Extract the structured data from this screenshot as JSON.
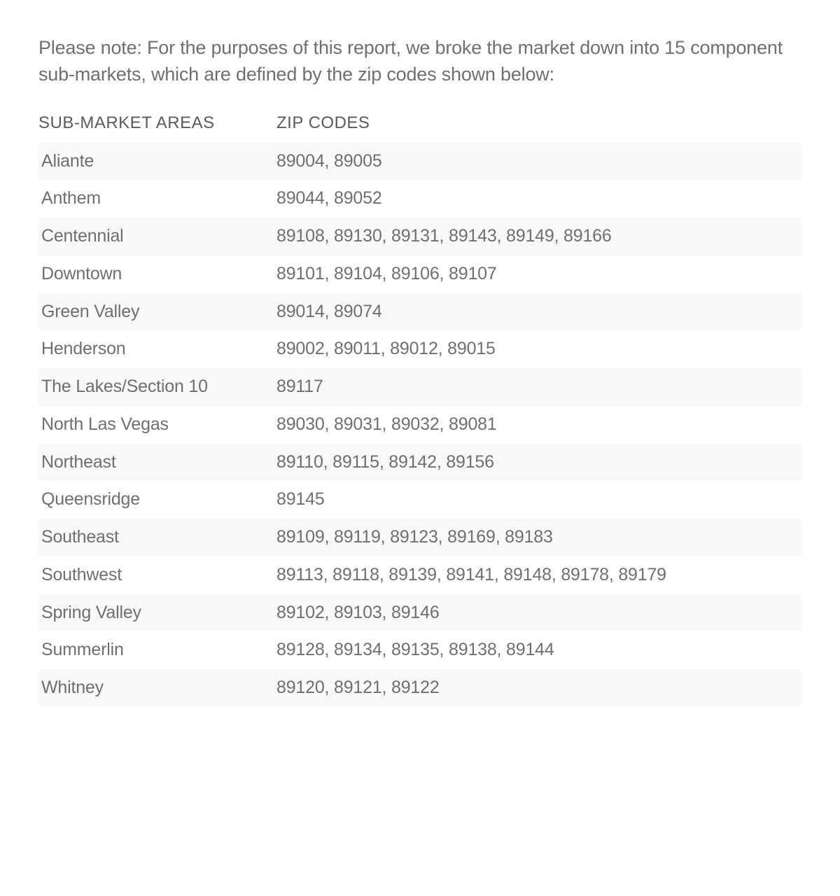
{
  "intro": "Please note: For the purposes of this report, we broke the market down into 15 component sub-markets, which are defined by the zip codes shown below:",
  "table": {
    "headers": {
      "area": "SUB-MARKET AREAS",
      "zip": "ZIP CODES"
    },
    "rows": [
      {
        "area": "Aliante",
        "zip": "89004, 89005"
      },
      {
        "area": "Anthem",
        "zip": "89044, 89052"
      },
      {
        "area": "Centennial",
        "zip": "89108, 89130, 89131, 89143, 89149, 89166"
      },
      {
        "area": "Downtown",
        "zip": "89101, 89104, 89106, 89107"
      },
      {
        "area": "Green Valley",
        "zip": "89014, 89074"
      },
      {
        "area": "Henderson",
        "zip": "89002, 89011, 89012, 89015"
      },
      {
        "area": "The Lakes/Section 10",
        "zip": "89117"
      },
      {
        "area": "North Las Vegas",
        "zip": "89030, 89031, 89032, 89081"
      },
      {
        "area": "Northeast",
        "zip": "89110, 89115, 89142, 89156"
      },
      {
        "area": "Queensridge",
        "zip": "89145"
      },
      {
        "area": "Southeast",
        "zip": "89109, 89119, 89123, 89169, 89183"
      },
      {
        "area": "Southwest",
        "zip": "89113, 89118, 89139, 89141, 89148, 89178, 89179"
      },
      {
        "area": "Spring Valley",
        "zip": "89102, 89103, 89146"
      },
      {
        "area": "Summerlin",
        "zip": "89128, 89134, 89135, 89138, 89144"
      },
      {
        "area": "Whitney",
        "zip": "89120, 89121, 89122"
      }
    ],
    "colors": {
      "text": "#6f6f6f",
      "header_text": "#5a5a5a",
      "row_odd_bg": "#f8f8f8",
      "row_even_bg": "#ffffff",
      "page_bg": "#ffffff"
    },
    "typography": {
      "intro_fontsize": 27,
      "header_fontsize": 24,
      "cell_fontsize": 25
    }
  }
}
